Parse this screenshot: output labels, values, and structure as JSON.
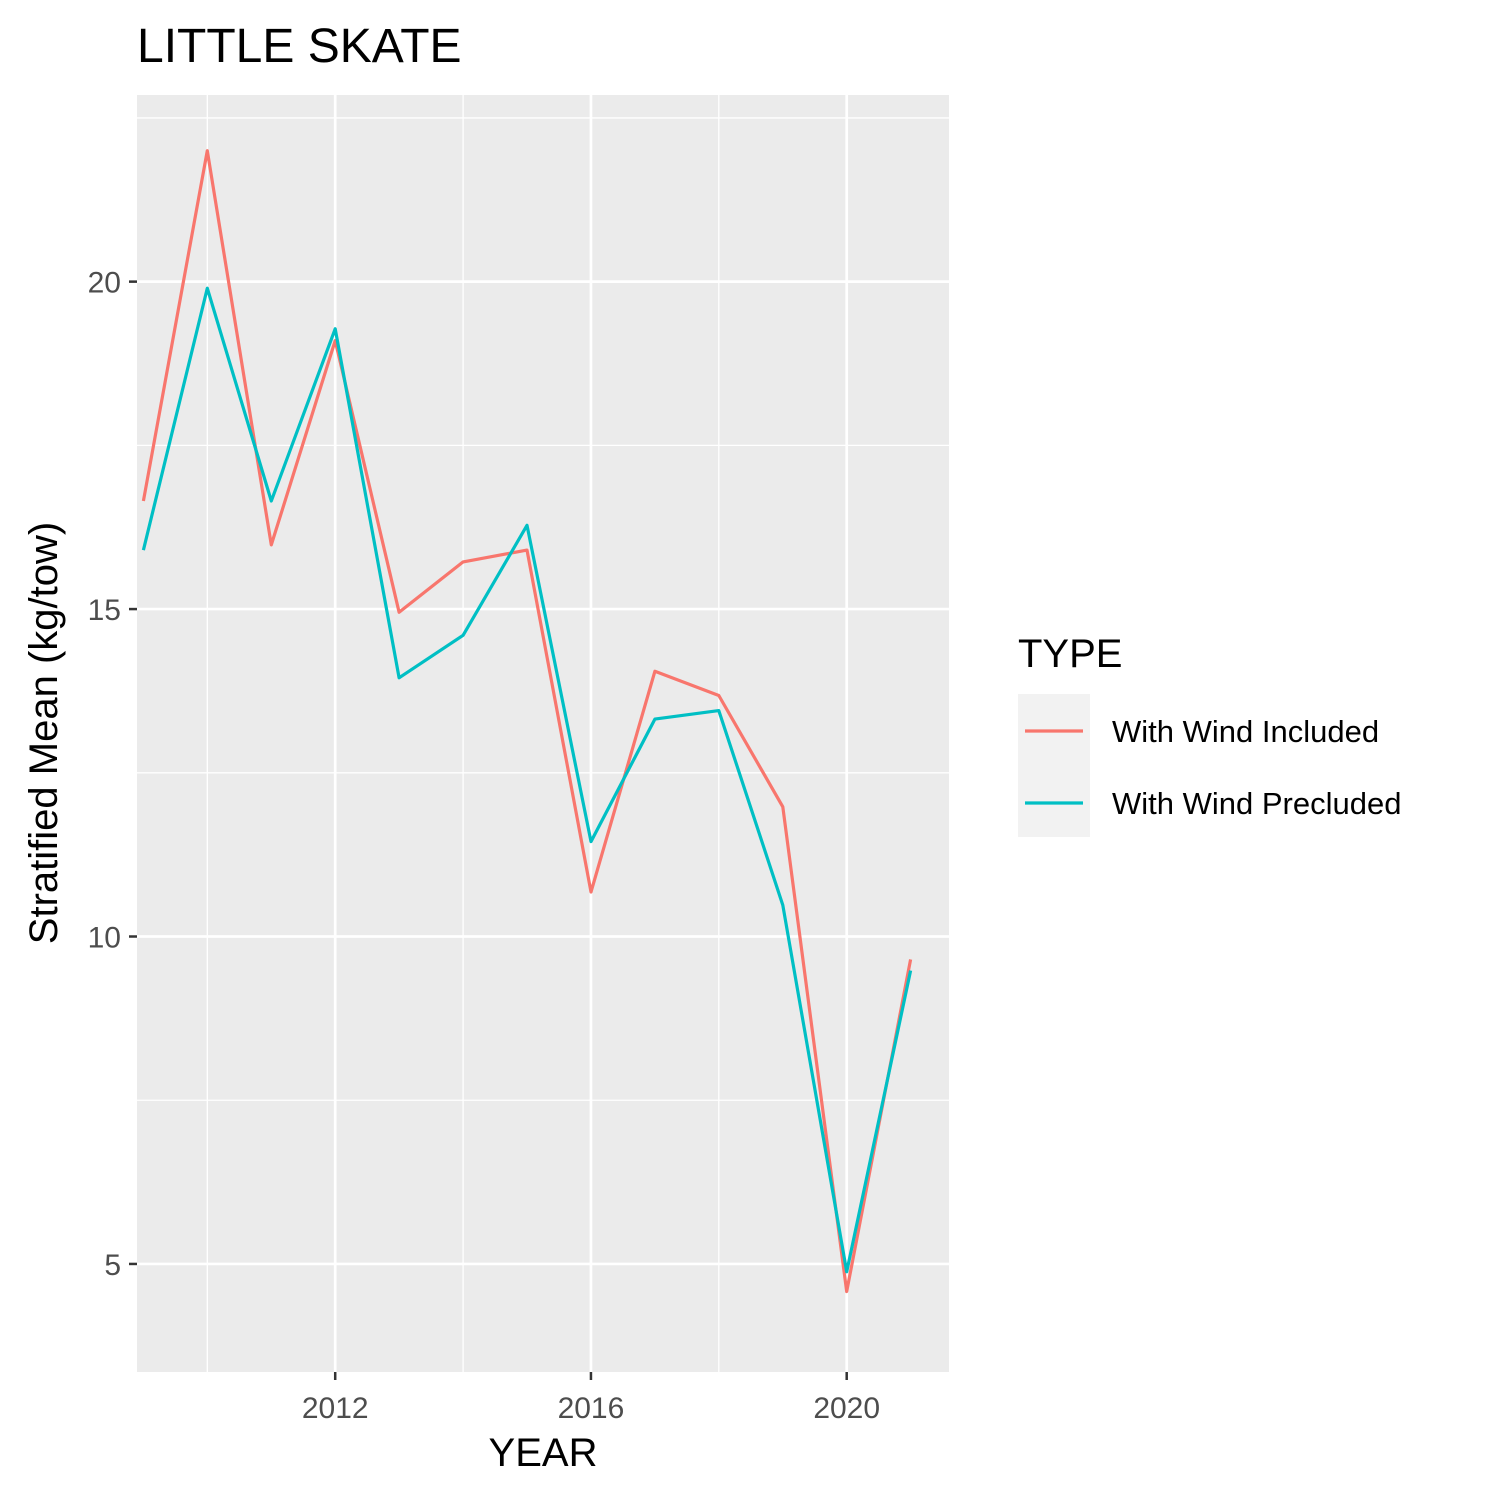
{
  "chart_data": {
    "type": "line",
    "title": "LITTLE SKATE",
    "xlabel": "YEAR",
    "ylabel": "Stratified Mean (kg/tow)",
    "x": [
      2009,
      2010,
      2011,
      2012,
      2013,
      2014,
      2015,
      2016,
      2017,
      2018,
      2019,
      2020,
      2021
    ],
    "xlim": [
      2008.9,
      2021.6
    ],
    "ylim": [
      3.35,
      22.85
    ],
    "x_ticks": [
      2012,
      2016,
      2020
    ],
    "y_ticks": [
      5,
      10,
      15,
      20
    ],
    "x_tick_labels": [
      "2012",
      "2016",
      "2020"
    ],
    "y_tick_labels": [
      "5",
      "10",
      "15",
      "20"
    ],
    "grid": true,
    "legend": {
      "title": "TYPE",
      "position": "right"
    },
    "series": [
      {
        "name": "With Wind Included",
        "color": "#F8766D",
        "values": [
          16.65,
          22.0,
          15.98,
          19.1,
          14.95,
          15.72,
          15.9,
          10.68,
          14.05,
          13.68,
          11.98,
          4.58,
          9.65
        ]
      },
      {
        "name": "With Wind Precluded",
        "color": "#00BFC4",
        "values": [
          15.9,
          19.9,
          16.65,
          19.28,
          13.95,
          14.6,
          16.28,
          11.45,
          13.32,
          13.45,
          10.48,
          4.88,
          9.48
        ]
      }
    ]
  }
}
